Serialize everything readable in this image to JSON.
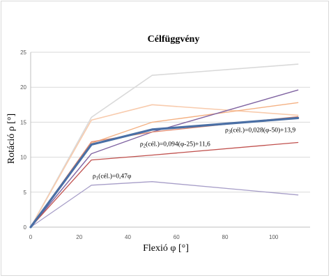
{
  "chart_data": {
    "type": "line",
    "title": "Célfüggvény",
    "xlabel": "Flexió φ [°]",
    "ylabel": "Rotáció ρ [°]",
    "xlim": [
      0,
      115
    ],
    "ylim": [
      0,
      25
    ],
    "xticks": [
      "0",
      "20",
      "40",
      "60",
      "80",
      "100"
    ],
    "yticks": [
      "0",
      "5",
      "10",
      "15",
      "20",
      "25"
    ],
    "grid": "horizontal",
    "legend": "none",
    "series": [
      {
        "color": "#d9d9d9",
        "width": 1.6,
        "points": [
          [
            0,
            0
          ],
          [
            25,
            15.7
          ],
          [
            50,
            21.7
          ],
          [
            110,
            23.3
          ]
        ]
      },
      {
        "color": "#f8cbad",
        "width": 1.6,
        "points": [
          [
            0,
            0
          ],
          [
            25,
            15.3
          ],
          [
            50,
            17.5
          ],
          [
            110,
            16.0
          ]
        ]
      },
      {
        "color": "#f4b183",
        "width": 1.4,
        "points": [
          [
            0,
            0
          ],
          [
            25,
            12.0
          ],
          [
            50,
            15.0
          ],
          [
            110,
            17.8
          ]
        ]
      },
      {
        "color": "#8064a2",
        "width": 1.4,
        "points": [
          [
            0,
            0
          ],
          [
            25,
            10.5
          ],
          [
            50,
            13.6
          ],
          [
            110,
            19.6
          ]
        ]
      },
      {
        "color": "#c0504d",
        "width": 1.3,
        "points": [
          [
            0,
            0
          ],
          [
            25,
            9.6
          ],
          [
            50,
            10.3
          ],
          [
            110,
            12.1
          ]
        ]
      },
      {
        "color": "#a79ec8",
        "width": 1.3,
        "points": [
          [
            0,
            0
          ],
          [
            25,
            6.0
          ],
          [
            50,
            6.5
          ],
          [
            110,
            4.6
          ]
        ]
      },
      {
        "color": "#e2876a",
        "width": 1.3,
        "points": [
          [
            0,
            0
          ],
          [
            25,
            12.2
          ],
          [
            50,
            13.6
          ],
          [
            110,
            15.8
          ]
        ]
      },
      {
        "color": "#4a6fa5",
        "width": 3.2,
        "points": [
          [
            0,
            0
          ],
          [
            25,
            11.8
          ],
          [
            50,
            13.95
          ],
          [
            110,
            15.6
          ]
        ]
      }
    ],
    "annotations": [
      {
        "base": "ρ",
        "sub": "3",
        "rest": "(cél.)=0,028(φ-50)+13,9",
        "at": [
          80,
          13.6
        ]
      },
      {
        "base": "ρ",
        "sub": "2",
        "rest": "(cél.)=0,094(φ-25)+11,6",
        "at": [
          45,
          11.6
        ]
      },
      {
        "base": "ρ",
        "sub": "1",
        "rest": "(cél.)=0,47φ",
        "at": [
          25.5,
          7.0
        ]
      }
    ]
  }
}
